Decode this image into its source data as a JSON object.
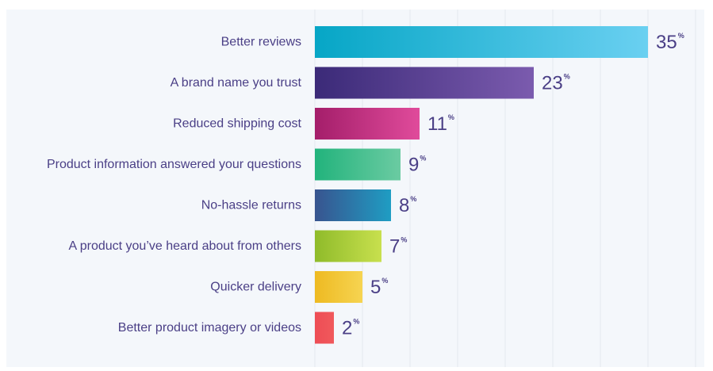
{
  "chart_data": {
    "type": "bar",
    "orientation": "horizontal",
    "categories": [
      "Better reviews",
      "A brand name you trust",
      "Reduced shipping cost",
      "Product information answered your questions",
      "No-hassle returns",
      "A product you’ve heard about from others",
      "Quicker delivery",
      "Better product imagery or videos"
    ],
    "values": [
      35,
      23,
      11,
      9,
      8,
      7,
      5,
      2
    ],
    "value_suffix": "%",
    "xlim": [
      0,
      40
    ],
    "grid": true,
    "title": "",
    "xlabel": "",
    "ylabel": "",
    "colors": [
      [
        "#06a6c6",
        "#6ad0f1"
      ],
      [
        "#3b2a78",
        "#7b5bae"
      ],
      [
        "#a41e6a",
        "#e04b9b"
      ],
      [
        "#22b37c",
        "#6bcba2"
      ],
      [
        "#38548f",
        "#1f9dc3"
      ],
      [
        "#8fbb2a",
        "#c8e04e"
      ],
      [
        "#eeba22",
        "#f6d451"
      ],
      [
        "#ee4d55",
        "#f0595c"
      ]
    ]
  }
}
